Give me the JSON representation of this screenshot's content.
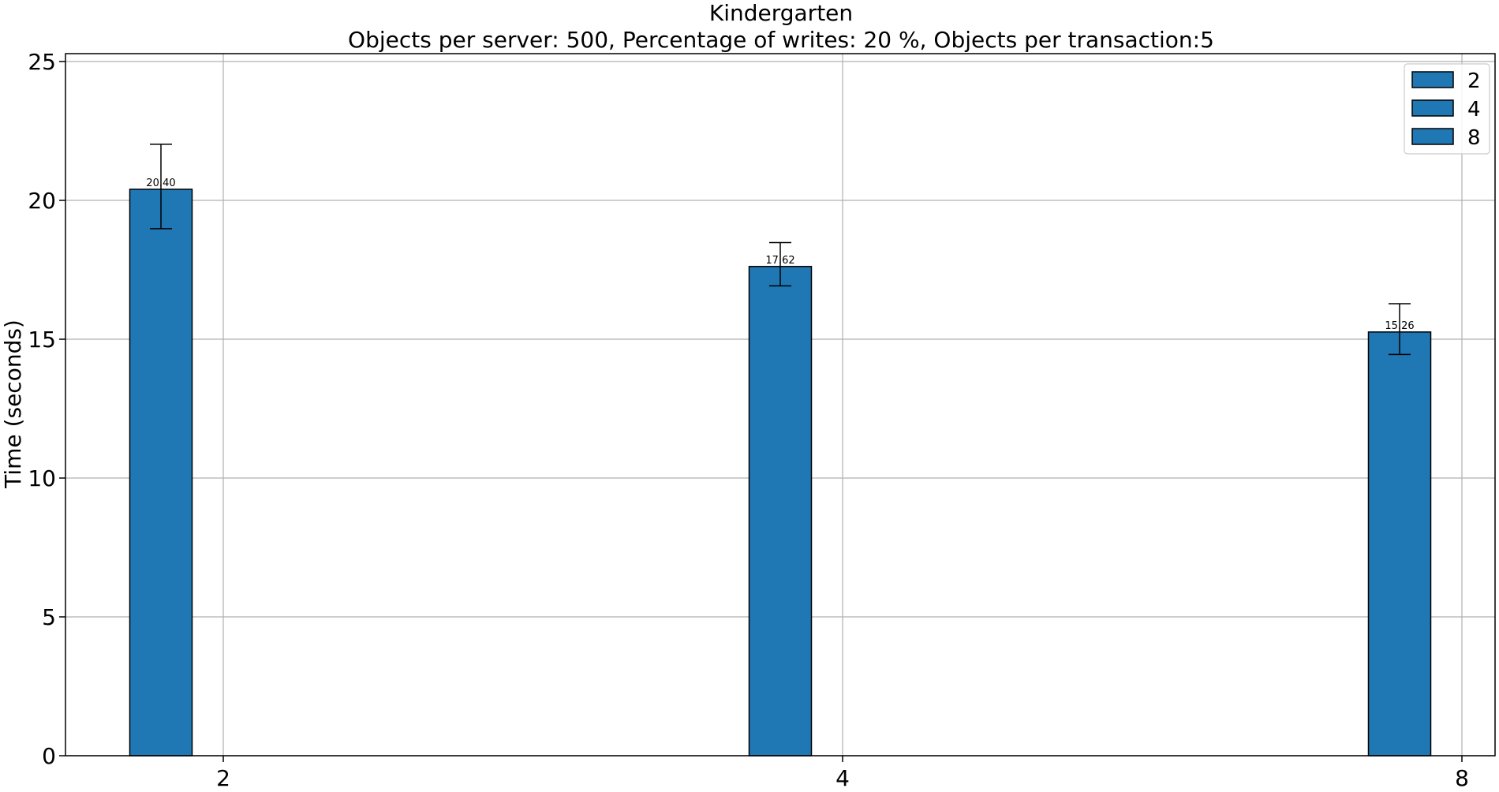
{
  "chart_data": {
    "type": "bar",
    "title": "Kindergarten",
    "subtitle": "Objects per server: 500, Percentage of writes: 20 %, Objects per transaction:5",
    "xlabel": "",
    "ylabel": "Time (seconds)",
    "x_ticks": [
      "2",
      "4",
      "8"
    ],
    "y_ticks": [
      "0",
      "5",
      "10",
      "15",
      "20",
      "25"
    ],
    "xlim": [
      0,
      2
    ],
    "ylim": [
      0,
      25
    ],
    "grid": true,
    "legend_position": "top-right",
    "series": [
      {
        "name": "2",
        "x": 0,
        "value": 20.4,
        "error_low": 18.98,
        "error_high": 22.02,
        "label": "20.40"
      },
      {
        "name": "4",
        "x": 1,
        "value": 17.62,
        "error_low": 16.92,
        "error_high": 18.48,
        "label": "17.62"
      },
      {
        "name": "8",
        "x": 2,
        "value": 15.26,
        "error_low": 14.45,
        "error_high": 16.28,
        "label": "15.26"
      }
    ],
    "colors": {
      "bar": "#1f77b4",
      "edge": "#000000",
      "grid": "#b0b0b0"
    }
  }
}
